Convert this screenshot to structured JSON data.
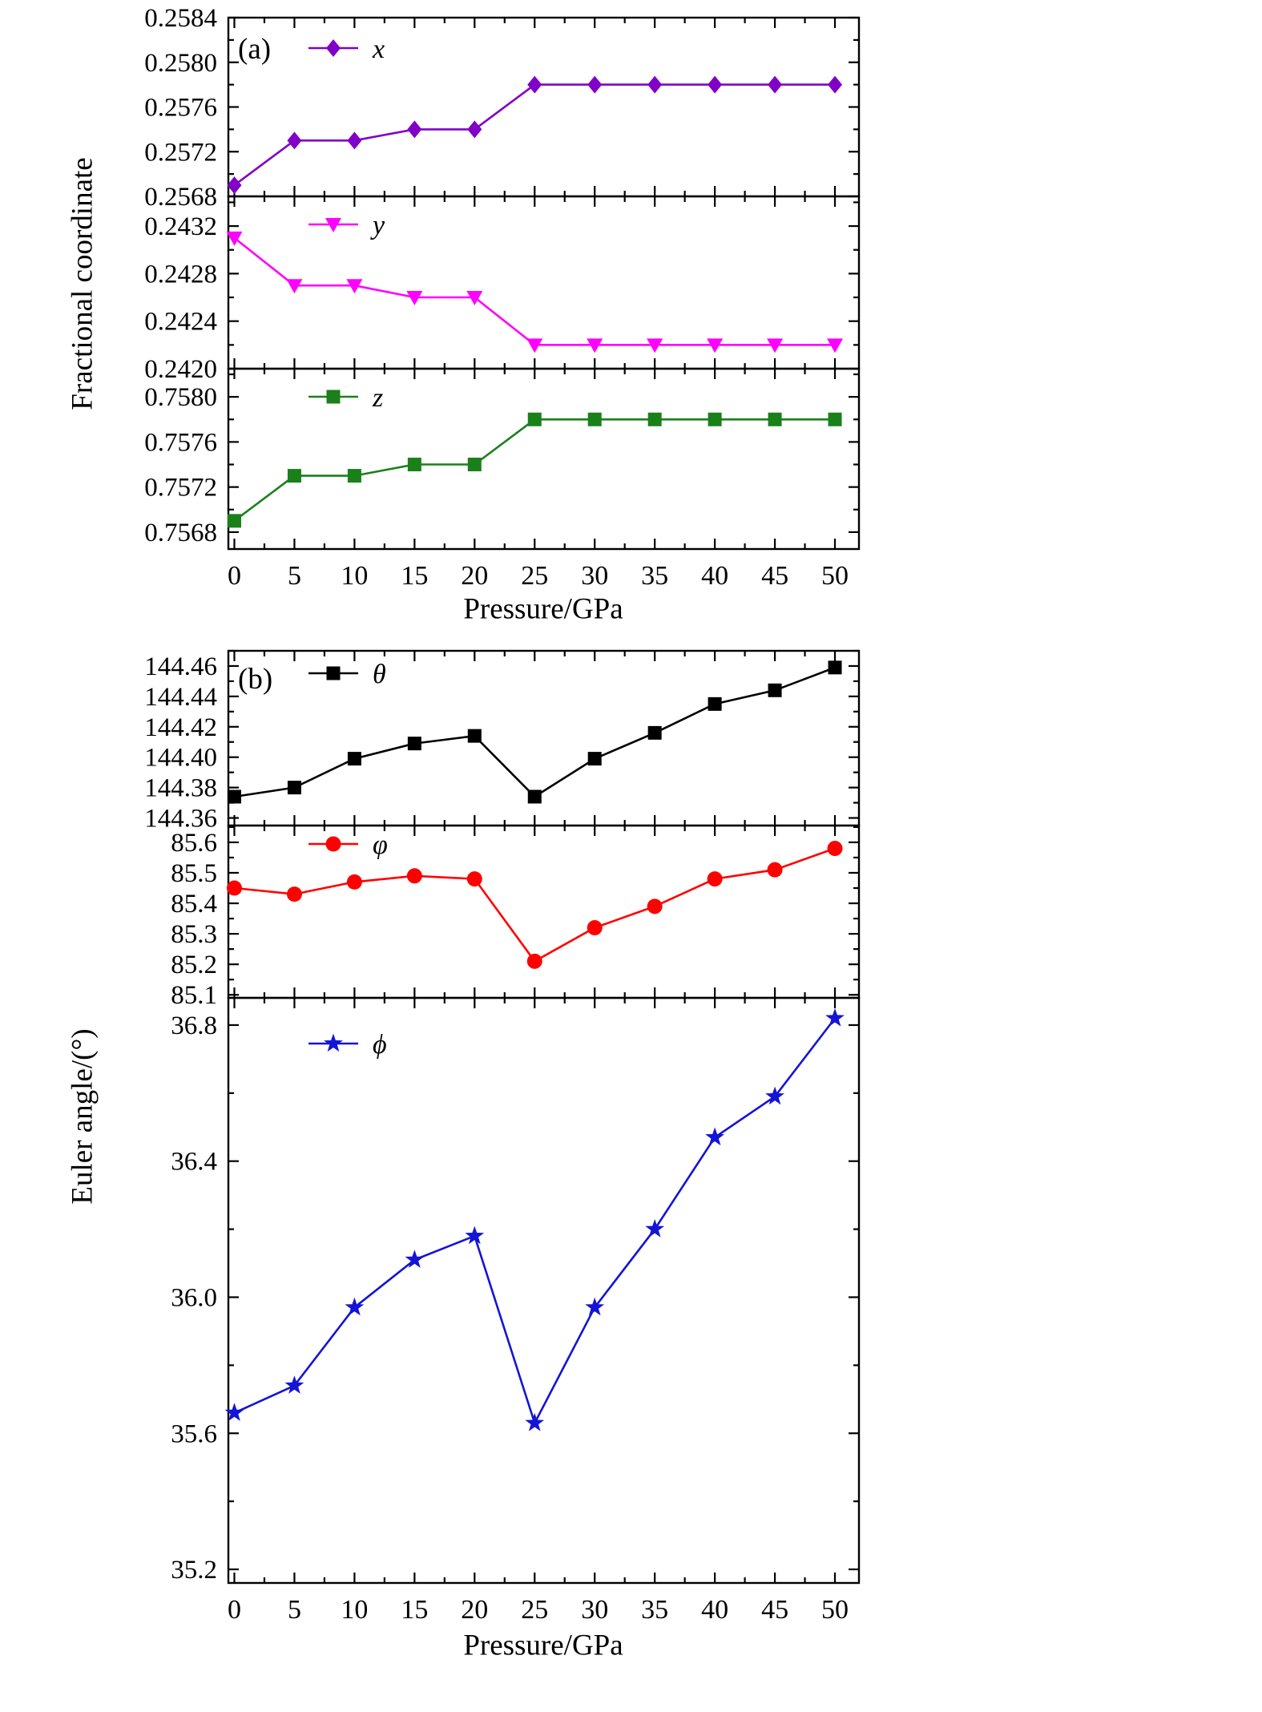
{
  "chart_meta": {
    "panel_a": {
      "tag": "(a)",
      "ylabel": "Fractional coordinate",
      "xlabel": "Pressure/GPa"
    },
    "panel_b": {
      "tag": "(b)",
      "ylabel": "Euler angle/(°)",
      "xlabel": "Pressure/GPa"
    }
  },
  "chart_data": [
    {
      "panel": "a",
      "type": "line",
      "x": [
        0,
        5,
        10,
        15,
        20,
        25,
        30,
        35,
        40,
        45,
        50
      ],
      "xlim": [
        -0.5,
        52
      ],
      "xtick_values": [
        0,
        5,
        10,
        15,
        20,
        25,
        30,
        35,
        40,
        45,
        50
      ],
      "xtick_labels": [
        "0",
        "5",
        "10",
        "15",
        "20",
        "25",
        "30",
        "35",
        "40",
        "45",
        "50"
      ],
      "ylim": [
        0.2568,
        0.2584
      ],
      "ytick_values": [
        0.2568,
        0.2572,
        0.2576,
        0.258,
        0.2584
      ],
      "ytick_labels": [
        "0.2568",
        "0.2572",
        "0.2576",
        "0.2580",
        "0.2584"
      ],
      "series": [
        {
          "name": "x",
          "legend_label": "x",
          "marker": "diamond",
          "color": "#8000C8",
          "values": [
            0.2569,
            0.2573,
            0.2573,
            0.2574,
            0.2574,
            0.2578,
            0.2578,
            0.2578,
            0.2578,
            0.2578,
            0.2578
          ]
        }
      ]
    },
    {
      "panel": "a",
      "type": "line",
      "x": [
        0,
        5,
        10,
        15,
        20,
        25,
        30,
        35,
        40,
        45,
        50
      ],
      "xlim": [
        -0.5,
        52
      ],
      "xtick_values": [
        0,
        5,
        10,
        15,
        20,
        25,
        30,
        35,
        40,
        45,
        50
      ],
      "xtick_labels": [
        "0",
        "5",
        "10",
        "15",
        "20",
        "25",
        "30",
        "35",
        "40",
        "45",
        "50"
      ],
      "ylim": [
        0.242,
        0.24345
      ],
      "ytick_values": [
        0.242,
        0.2424,
        0.2428,
        0.2432
      ],
      "ytick_labels": [
        "0.2420",
        "0.2424",
        "0.2428",
        "0.2432"
      ],
      "series": [
        {
          "name": "y",
          "legend_label": "y",
          "marker": "triangle-down",
          "color": "#FF00FF",
          "values": [
            0.2431,
            0.2427,
            0.2427,
            0.2426,
            0.2426,
            0.2422,
            0.2422,
            0.2422,
            0.2422,
            0.2422,
            0.2422
          ]
        }
      ]
    },
    {
      "panel": "a",
      "type": "line",
      "x": [
        0,
        5,
        10,
        15,
        20,
        25,
        30,
        35,
        40,
        45,
        50
      ],
      "xlim": [
        -0.5,
        52
      ],
      "xtick_values": [
        0,
        5,
        10,
        15,
        20,
        25,
        30,
        35,
        40,
        45,
        50
      ],
      "xtick_labels": [
        "0",
        "5",
        "10",
        "15",
        "20",
        "25",
        "30",
        "35",
        "40",
        "45",
        "50"
      ],
      "ylim": [
        0.75665,
        0.75825
      ],
      "ytick_values": [
        0.7568,
        0.7572,
        0.7576,
        0.758
      ],
      "ytick_labels": [
        "0.7568",
        "0.7572",
        "0.7576",
        "0.7580"
      ],
      "series": [
        {
          "name": "z",
          "legend_label": "z",
          "marker": "square",
          "color": "#1A801A",
          "values": [
            0.7569,
            0.7573,
            0.7573,
            0.7574,
            0.7574,
            0.7578,
            0.7578,
            0.7578,
            0.7578,
            0.7578,
            0.7578
          ]
        }
      ]
    },
    {
      "panel": "b",
      "type": "line",
      "x": [
        0,
        5,
        10,
        15,
        20,
        25,
        30,
        35,
        40,
        45,
        50
      ],
      "xlim": [
        -0.5,
        52
      ],
      "xtick_values": [
        0,
        5,
        10,
        15,
        20,
        25,
        30,
        35,
        40,
        45,
        50
      ],
      "xtick_labels": [
        "0",
        "5",
        "10",
        "15",
        "20",
        "25",
        "30",
        "35",
        "40",
        "45",
        "50"
      ],
      "ylim": [
        144.355,
        144.47
      ],
      "ytick_values": [
        144.36,
        144.38,
        144.4,
        144.42,
        144.44,
        144.46
      ],
      "ytick_labels": [
        "144.36",
        "144.38",
        "144.40",
        "144.42",
        "144.44",
        "144.46"
      ],
      "series": [
        {
          "name": "theta",
          "legend_label": "θ",
          "marker": "square",
          "color": "#000000",
          "values": [
            144.374,
            144.38,
            144.399,
            144.409,
            144.414,
            144.374,
            144.399,
            144.416,
            144.435,
            144.444,
            144.459
          ]
        }
      ]
    },
    {
      "panel": "b",
      "type": "line",
      "x": [
        0,
        5,
        10,
        15,
        20,
        25,
        30,
        35,
        40,
        45,
        50
      ],
      "xlim": [
        -0.5,
        52
      ],
      "xtick_values": [
        0,
        5,
        10,
        15,
        20,
        25,
        30,
        35,
        40,
        45,
        50
      ],
      "xtick_labels": [
        "0",
        "5",
        "10",
        "15",
        "20",
        "25",
        "30",
        "35",
        "40",
        "45",
        "50"
      ],
      "ylim": [
        85.09,
        85.655
      ],
      "ytick_values": [
        85.1,
        85.2,
        85.3,
        85.4,
        85.5,
        85.6
      ],
      "ytick_labels": [
        "85.1",
        "85.2",
        "85.3",
        "85.4",
        "85.5",
        "85.6"
      ],
      "series": [
        {
          "name": "varphi",
          "legend_label": "φ",
          "marker": "circle",
          "color": "#FF0000",
          "values": [
            85.45,
            85.43,
            85.47,
            85.49,
            85.48,
            85.21,
            85.32,
            85.39,
            85.48,
            85.51,
            85.58
          ]
        }
      ]
    },
    {
      "panel": "b",
      "type": "line",
      "x": [
        0,
        5,
        10,
        15,
        20,
        25,
        30,
        35,
        40,
        45,
        50
      ],
      "xlim": [
        -0.5,
        52
      ],
      "xtick_values": [
        0,
        5,
        10,
        15,
        20,
        25,
        30,
        35,
        40,
        45,
        50
      ],
      "xtick_labels": [
        "0",
        "5",
        "10",
        "15",
        "20",
        "25",
        "30",
        "35",
        "40",
        "45",
        "50"
      ],
      "ylim": [
        35.16,
        36.88
      ],
      "ytick_values": [
        35.2,
        35.6,
        36.0,
        36.4,
        36.8
      ],
      "ytick_labels": [
        "35.2",
        "35.6",
        "36.0",
        "36.4",
        "36.8"
      ],
      "series": [
        {
          "name": "phi",
          "legend_label": "ϕ",
          "marker": "star",
          "color": "#1414D6",
          "values": [
            35.66,
            35.74,
            35.97,
            36.11,
            36.18,
            35.63,
            35.97,
            36.2,
            36.47,
            36.59,
            36.82
          ]
        }
      ]
    }
  ]
}
